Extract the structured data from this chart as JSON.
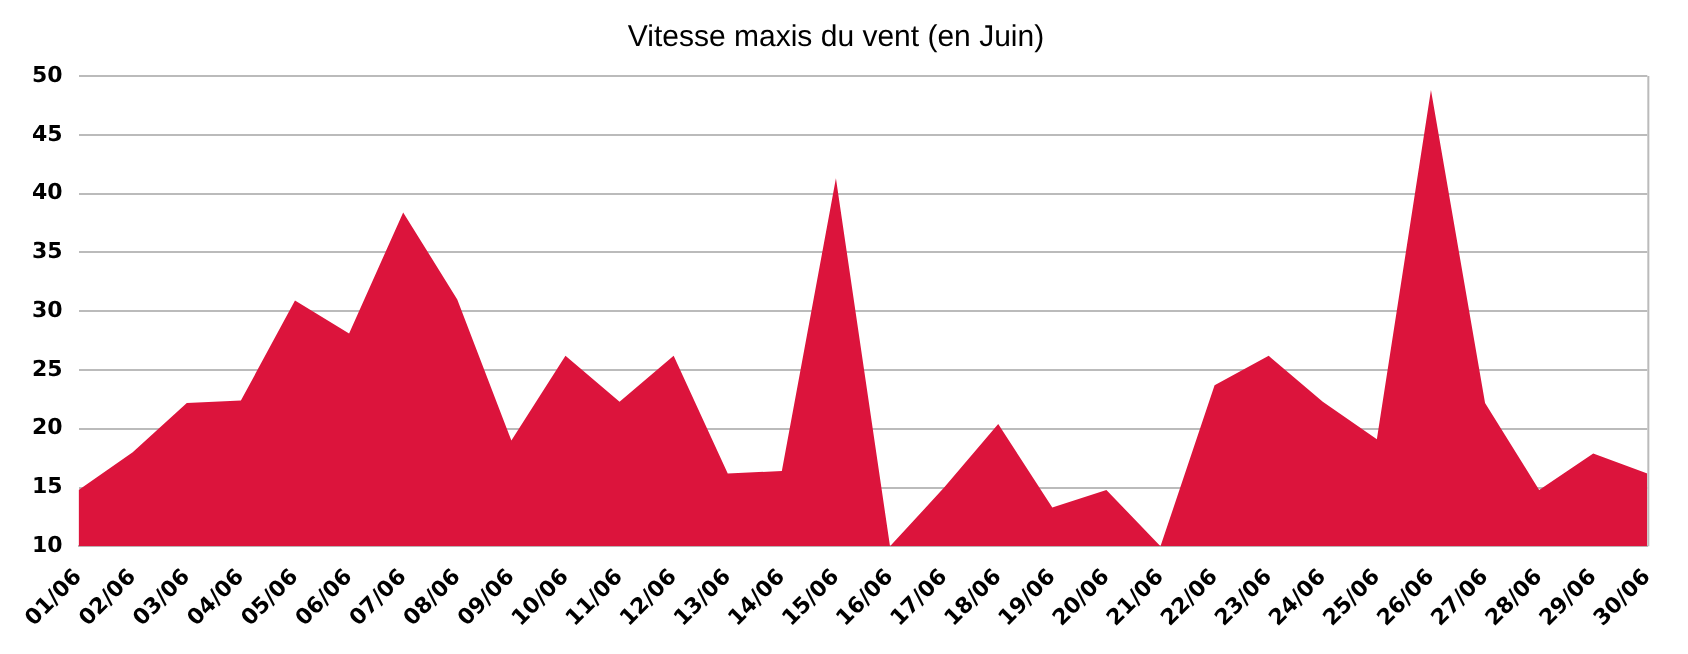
{
  "chart_data": {
    "type": "area",
    "title": "Vitesse maxis du vent (en Juin)",
    "categories": [
      "01/06",
      "02/06",
      "03/06",
      "04/06",
      "05/06",
      "06/06",
      "07/06",
      "08/06",
      "09/06",
      "10/06",
      "11/06",
      "12/06",
      "13/06",
      "14/06",
      "15/06",
      "16/06",
      "17/06",
      "18/06",
      "19/06",
      "20/06",
      "21/06",
      "22/06",
      "23/06",
      "24/06",
      "25/06",
      "26/06",
      "27/06",
      "28/06",
      "29/06",
      "30/06"
    ],
    "values": [
      14.8,
      18,
      22.2,
      22.4,
      30.9,
      28.1,
      38.4,
      31,
      19,
      26.2,
      22.3,
      26.2,
      16.2,
      16.4,
      41.3,
      10,
      15,
      20.4,
      13.3,
      14.8,
      10,
      23.7,
      26.2,
      22.3,
      19.1,
      48.8,
      22.2,
      14.8,
      17.9,
      16.2
    ],
    "color": "#dc143c",
    "ylim": [
      10,
      50
    ],
    "yticks": [
      10,
      15,
      20,
      25,
      30,
      35,
      40,
      45,
      50
    ],
    "grid": "y"
  }
}
